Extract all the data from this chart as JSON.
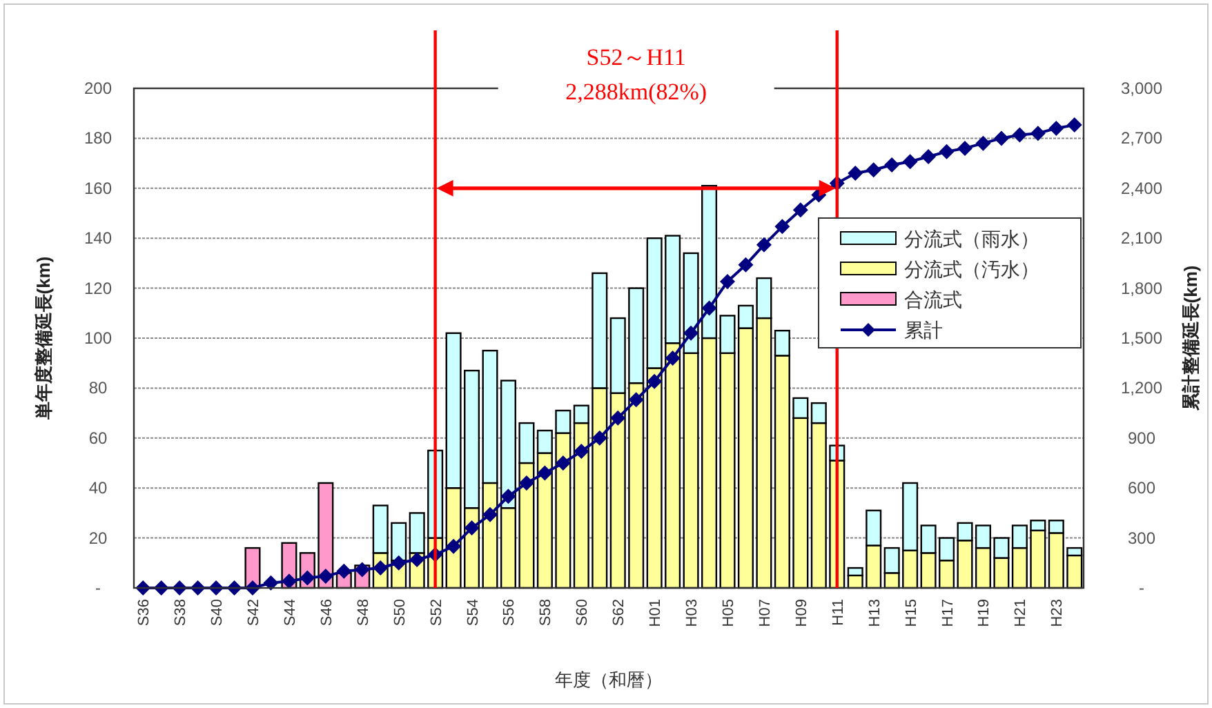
{
  "chart_data": {
    "type": "bar",
    "stacked": true,
    "xlabel": "年度（和暦）",
    "ylabel": "単年度整備延長(km)",
    "y2label": "累計整備延長(km)",
    "categories": [
      "S36",
      null,
      "S38",
      null,
      "S40",
      null,
      "S42",
      null,
      "S44",
      null,
      "S46",
      null,
      "S48",
      null,
      "S50",
      null,
      "S52",
      null,
      "S54",
      null,
      "S56",
      null,
      "S58",
      null,
      "S60",
      null,
      "S62",
      null,
      "H01",
      null,
      "H03",
      null,
      "H05",
      null,
      "H07",
      null,
      "H09",
      null,
      "H11",
      null,
      "H13",
      null,
      "H15",
      null,
      "H17",
      null,
      "H19",
      null,
      "H21",
      null,
      "H23",
      null
    ],
    "series": [
      {
        "name": "合流式",
        "color": "#ff99cc",
        "values": [
          null,
          null,
          null,
          null,
          null,
          null,
          16,
          null,
          18,
          14,
          42,
          6,
          9,
          null,
          null,
          null,
          null,
          null,
          null,
          null,
          null,
          null,
          null,
          null,
          null,
          null,
          null,
          null,
          null,
          null,
          null,
          null,
          null,
          null,
          null,
          null,
          null,
          null,
          null,
          null,
          null,
          null,
          null,
          null,
          null,
          null,
          null,
          null,
          null,
          null,
          null,
          null
        ]
      },
      {
        "name": "分流式（汚水）",
        "color": "#ffff99",
        "values": [
          null,
          null,
          null,
          null,
          null,
          null,
          null,
          null,
          null,
          null,
          null,
          null,
          null,
          14,
          11,
          14,
          20,
          40,
          32,
          42,
          32,
          50,
          54,
          62,
          66,
          80,
          78,
          82,
          88,
          98,
          94,
          100,
          94,
          104,
          108,
          93,
          68,
          66,
          51,
          5,
          17,
          6,
          15,
          14,
          11,
          19,
          16,
          12,
          16,
          23,
          22,
          13
        ]
      },
      {
        "name": "分流式（雨水）",
        "color": "#ccffff",
        "values": [
          null,
          null,
          null,
          null,
          null,
          null,
          null,
          null,
          null,
          null,
          null,
          null,
          null,
          19,
          15,
          16,
          35,
          62,
          55,
          53,
          51,
          16,
          9,
          9,
          7,
          46,
          30,
          38,
          52,
          43,
          40,
          61,
          15,
          9,
          16,
          10,
          8,
          8,
          6,
          3,
          14,
          10,
          27,
          11,
          9,
          7,
          9,
          8,
          9,
          4,
          5,
          3
        ]
      },
      {
        "name": "累計",
        "type": "line",
        "axis": "y2",
        "color": "#000080",
        "marker": "diamond",
        "values": [
          0,
          0,
          0,
          0,
          0,
          0,
          0,
          30,
          40,
          60,
          70,
          100,
          110,
          120,
          150,
          170,
          200,
          250,
          360,
          440,
          550,
          630,
          690,
          750,
          820,
          900,
          1020,
          1130,
          1240,
          1380,
          1530,
          1680,
          1840,
          1940,
          2060,
          2170,
          2270,
          2360,
          2430,
          2490,
          2510,
          2540,
          2560,
          2590,
          2620,
          2640,
          2670,
          2700,
          2720,
          2730,
          2760,
          2780
        ]
      }
    ],
    "ylim": [
      0,
      200
    ],
    "yticks": [
      {
        "value": 0,
        "label": "-"
      },
      20,
      40,
      60,
      80,
      100,
      120,
      140,
      160,
      180,
      200
    ],
    "y2lim": [
      0,
      3000
    ],
    "y2ticks": [
      {
        "value": 0,
        "label": "-"
      },
      {
        "value": 300,
        "label": "300"
      },
      {
        "value": 600,
        "label": "600"
      },
      {
        "value": 900,
        "label": "900"
      },
      {
        "value": 1200,
        "label": "1,200"
      },
      {
        "value": 1500,
        "label": "1,500"
      },
      {
        "value": 1800,
        "label": "1,800"
      },
      {
        "value": 2100,
        "label": "2,100"
      },
      {
        "value": 2400,
        "label": "2,400"
      },
      {
        "value": 2700,
        "label": "2,700"
      },
      {
        "value": 3000,
        "label": "3,000"
      }
    ],
    "grid": "y",
    "legend": "right",
    "ref_lines": [
      {
        "axis": "x",
        "value": "S52",
        "color": "#ff0000"
      },
      {
        "axis": "x",
        "value": "H11",
        "color": "#ff0000"
      }
    ],
    "annotations": [
      "S52～H11",
      "2,288km(82%)"
    ]
  }
}
